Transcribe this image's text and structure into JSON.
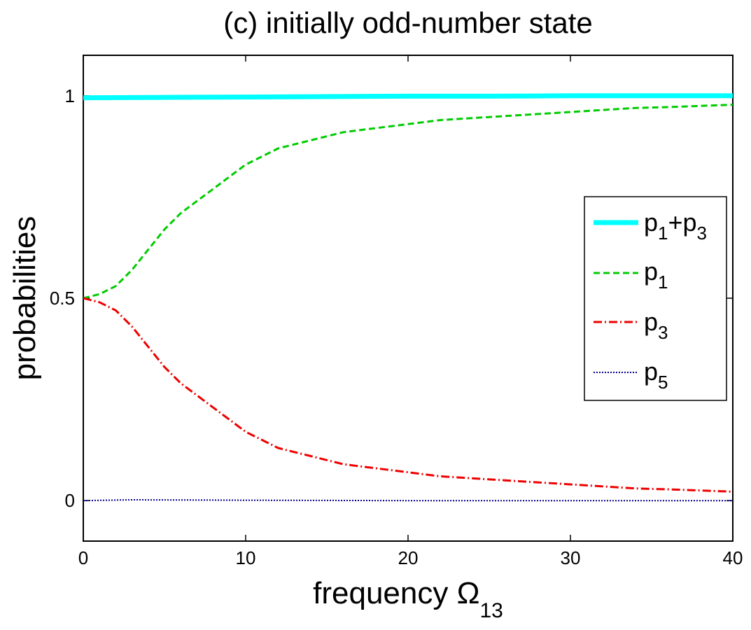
{
  "chart_data": {
    "type": "line",
    "title": "(c) initially odd-number state",
    "xlabel": "frequency Ω",
    "xlabel_subscript": "13",
    "ylabel": "probabilities",
    "xlim": [
      0,
      40
    ],
    "ylim": [
      -0.1,
      1.1
    ],
    "xticks": [
      0,
      10,
      20,
      30,
      40
    ],
    "xtick_labels": [
      "0",
      "10",
      "20",
      "30",
      "40"
    ],
    "yticks": [
      0,
      0.5,
      1
    ],
    "ytick_labels": [
      "0",
      "0.5",
      "1"
    ],
    "grid": false,
    "legend_position": "right",
    "series": [
      {
        "name": "p1+p3",
        "label_base": "p",
        "label_sub1": "1",
        "label_mid": "+p",
        "label_sub2": "3",
        "color": "#00ffff",
        "style": "solid",
        "x": [
          0,
          5,
          10,
          15,
          20,
          25,
          30,
          35,
          40
        ],
        "values": [
          0.995,
          0.996,
          0.997,
          0.998,
          0.999,
          0.999,
          1.0,
          1.0,
          1.0
        ]
      },
      {
        "name": "p1",
        "label_base": "p",
        "label_sub1": "1",
        "color": "#00cc00",
        "style": "dashed",
        "x": [
          0,
          1,
          2,
          3,
          4,
          5,
          6,
          7,
          8,
          9,
          10,
          11,
          12,
          13,
          14,
          15,
          16,
          17,
          18,
          19,
          20,
          22,
          24,
          26,
          28,
          30,
          32,
          34,
          36,
          38,
          40
        ],
        "values": [
          0.5,
          0.51,
          0.53,
          0.57,
          0.62,
          0.67,
          0.71,
          0.74,
          0.77,
          0.8,
          0.83,
          0.85,
          0.87,
          0.88,
          0.89,
          0.9,
          0.91,
          0.915,
          0.92,
          0.925,
          0.93,
          0.94,
          0.945,
          0.95,
          0.955,
          0.96,
          0.965,
          0.97,
          0.972,
          0.975,
          0.978
        ]
      },
      {
        "name": "p3",
        "label_base": "p",
        "label_sub1": "3",
        "color": "#ee0000",
        "style": "dashdot",
        "x": [
          0,
          1,
          2,
          3,
          4,
          5,
          6,
          7,
          8,
          9,
          10,
          11,
          12,
          13,
          14,
          15,
          16,
          17,
          18,
          19,
          20,
          22,
          24,
          26,
          28,
          30,
          32,
          34,
          36,
          38,
          40
        ],
        "values": [
          0.5,
          0.49,
          0.47,
          0.43,
          0.38,
          0.33,
          0.29,
          0.26,
          0.23,
          0.2,
          0.17,
          0.15,
          0.13,
          0.12,
          0.11,
          0.1,
          0.09,
          0.085,
          0.08,
          0.075,
          0.07,
          0.06,
          0.055,
          0.05,
          0.045,
          0.04,
          0.035,
          0.03,
          0.028,
          0.025,
          0.022
        ]
      },
      {
        "name": "p5",
        "label_base": "p",
        "label_sub1": "5",
        "color": "#00008b",
        "style": "dotted",
        "x": [
          0,
          3,
          10,
          20,
          30,
          40
        ],
        "values": [
          0.0,
          0.002,
          0.001,
          0.0,
          0.0,
          0.0
        ]
      }
    ]
  }
}
